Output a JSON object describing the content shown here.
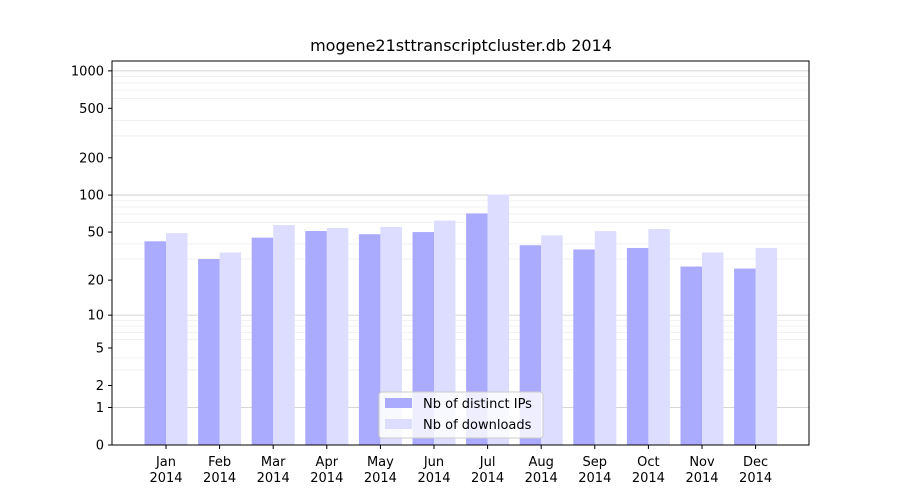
{
  "chart_data": {
    "type": "bar",
    "title": "mogene21sttranscriptcluster.db 2014",
    "xlabel": "",
    "ylabel": "",
    "yscale": "log(1+y)",
    "ylim": [
      0,
      1200
    ],
    "y_ticks": [
      0,
      1,
      2,
      5,
      10,
      20,
      50,
      100,
      200,
      500,
      1000
    ],
    "grid": "horizontal",
    "legend_position": "bottom-center",
    "categories": [
      [
        "Jan",
        "2014"
      ],
      [
        "Feb",
        "2014"
      ],
      [
        "Mar",
        "2014"
      ],
      [
        "Apr",
        "2014"
      ],
      [
        "May",
        "2014"
      ],
      [
        "Jun",
        "2014"
      ],
      [
        "Jul",
        "2014"
      ],
      [
        "Aug",
        "2014"
      ],
      [
        "Sep",
        "2014"
      ],
      [
        "Oct",
        "2014"
      ],
      [
        "Nov",
        "2014"
      ],
      [
        "Dec",
        "2014"
      ]
    ],
    "series": [
      {
        "name": "Nb of distinct IPs",
        "color": "#aaaaff",
        "values": [
          42,
          30,
          45,
          51,
          48,
          50,
          71,
          39,
          36,
          37,
          26,
          25
        ]
      },
      {
        "name": "Nb of downloads",
        "color": "#ddddff",
        "values": [
          49,
          34,
          57,
          54,
          55,
          62,
          101,
          47,
          51,
          53,
          34,
          37
        ]
      }
    ]
  }
}
